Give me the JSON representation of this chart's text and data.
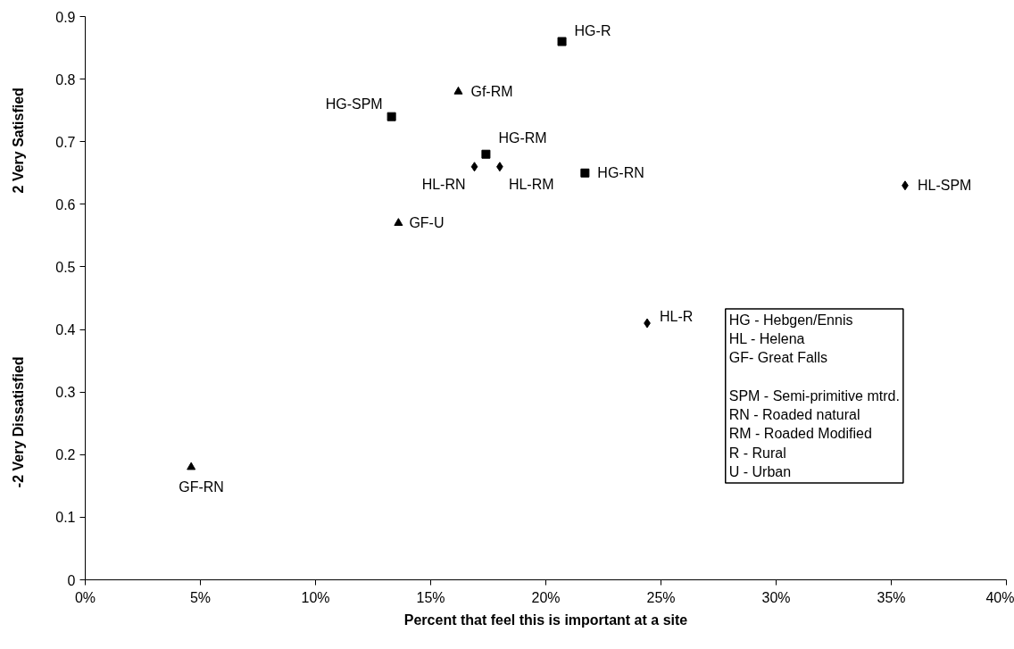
{
  "chart_data": {
    "type": "scatter",
    "xlabel": "Percent that feel this is important at a site",
    "ylabel": "2 Very Satisfied",
    "xlim": [
      0,
      40
    ],
    "xticks": [
      {
        "value": 0,
        "label": "0%"
      },
      {
        "value": 5,
        "label": "5%"
      },
      {
        "value": 10,
        "label": "10%"
      },
      {
        "value": 15,
        "label": "15%"
      },
      {
        "value": 20,
        "label": "20%"
      },
      {
        "value": 25,
        "label": "25%"
      },
      {
        "value": 30,
        "label": "30%"
      },
      {
        "value": 35,
        "label": "35%"
      },
      {
        "value": 40,
        "label": "40%"
      }
    ],
    "ylim": [
      0,
      0.9
    ],
    "yticks": [
      0,
      0.1,
      0.2,
      0.3,
      0.4,
      0.5,
      0.6,
      0.7,
      0.8,
      0.9
    ],
    "grid": false,
    "series": [
      {
        "color": "#000000",
        "marker": "square",
        "x": [
          20.7,
          13.3,
          17.4,
          21.7
        ],
        "values": [
          0.86,
          0.74,
          0.68,
          0.65
        ]
      },
      {
        "color": "#000000",
        "marker": "diamond",
        "x": [
          16.9,
          18.0,
          24.4,
          35.6
        ],
        "values": [
          0.66,
          0.66,
          0.41,
          0.63
        ]
      },
      {
        "color": "#000000",
        "marker": "triangle",
        "x": [
          16.2,
          13.6,
          4.6
        ],
        "values": [
          0.78,
          0.57,
          0.18
        ]
      }
    ],
    "annotations": [
      "-2 Very Dissatisfied",
      "HG - Hebgen/Ennis\nHL - Helena\nGF- Great Falls\n\nSPM - Semi-primitive mtrd.\nRN - Roaded natural\nRM -  Roaded Modified\nR - Rural\nU - Urban",
      {
        "text": "HG-R",
        "x": 20.7,
        "y": 0.86
      },
      {
        "text": "HG-SPM",
        "x": 13.3,
        "y": 0.74
      },
      {
        "text": "HG-RM",
        "x": 17.4,
        "y": 0.68
      },
      {
        "text": "HG-RN",
        "x": 21.7,
        "y": 0.65
      },
      {
        "text": "HL-RN",
        "x": 16.9,
        "y": 0.66
      },
      {
        "text": "HL-RM",
        "x": 18.0,
        "y": 0.66
      },
      {
        "text": "HL-R",
        "x": 24.4,
        "y": 0.41
      },
      {
        "text": "HL-SPM",
        "x": 35.6,
        "y": 0.63
      },
      {
        "text": "Gf-RM",
        "x": 16.2,
        "y": 0.78
      },
      {
        "text": "GF-U",
        "x": 13.6,
        "y": 0.57
      },
      {
        "text": "GF-RN",
        "x": 4.6,
        "y": 0.18
      }
    ]
  }
}
